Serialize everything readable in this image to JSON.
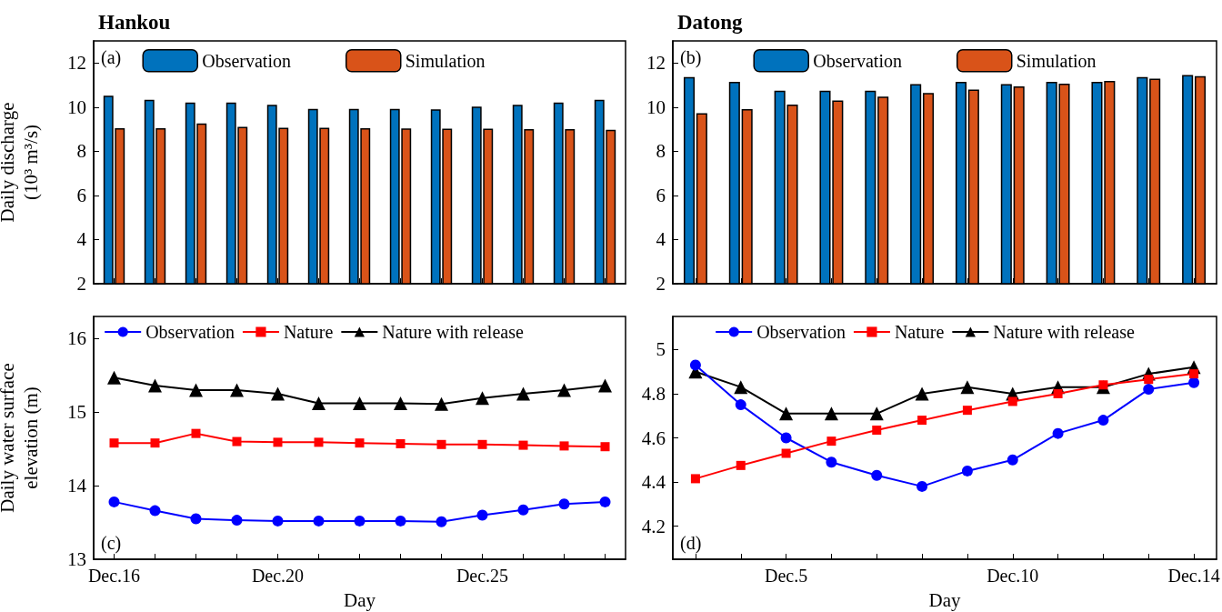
{
  "chart_data": [
    {
      "type": "bar",
      "title": "Hankou",
      "ylabel": "Daily discharge (10³ m³/s)",
      "annotations": [
        "(a)"
      ],
      "categories": [
        null,
        null,
        null,
        null,
        null,
        null,
        null,
        null,
        null,
        null,
        null,
        null,
        null
      ],
      "series": [
        {
          "name": "Observation",
          "color": "#0072bd",
          "values": [
            10.52,
            10.33,
            10.21,
            10.21,
            10.11,
            9.92,
            9.92,
            9.92,
            9.9,
            10.02,
            10.11,
            10.21,
            10.33
          ]
        },
        {
          "name": "Simulation",
          "color": "#d95319",
          "values": [
            9.05,
            9.05,
            9.26,
            9.11,
            9.07,
            9.07,
            9.05,
            9.03,
            9.02,
            9.02,
            9.0,
            9.0,
            8.97
          ]
        }
      ],
      "ylim": [
        2,
        13
      ],
      "yticks": [
        2,
        4,
        6,
        8,
        10,
        12
      ],
      "legend": "top"
    },
    {
      "type": "bar",
      "title": "Datong",
      "annotations": [
        "(b)"
      ],
      "categories": [
        null,
        null,
        null,
        null,
        null,
        null,
        null,
        null,
        null,
        null,
        null,
        null
      ],
      "series": [
        {
          "name": "Observation",
          "color": "#0072bd",
          "values": [
            11.36,
            11.15,
            10.74,
            10.74,
            10.74,
            11.04,
            11.15,
            11.04,
            11.15,
            11.15,
            11.36,
            11.45
          ]
        },
        {
          "name": "Simulation",
          "color": "#d95319",
          "values": [
            9.72,
            9.91,
            10.12,
            10.3,
            10.48,
            10.64,
            10.8,
            10.94,
            11.06,
            11.19,
            11.29,
            11.4
          ]
        }
      ],
      "ylim": [
        2,
        13
      ],
      "yticks": [
        2,
        4,
        6,
        8,
        10,
        12
      ],
      "legend": "top"
    },
    {
      "type": "line",
      "xlabel": "Day",
      "ylabel": "Daily water surface elevation (m)",
      "annotations": [
        "(c)"
      ],
      "categories": [
        "Dec.16",
        null,
        null,
        null,
        "Dec.20",
        null,
        null,
        null,
        null,
        "Dec.25",
        null,
        null,
        null
      ],
      "series": [
        {
          "name": "Observation",
          "color": "#0000ff",
          "marker": "circle",
          "values": [
            13.78,
            13.66,
            13.55,
            13.53,
            13.52,
            13.52,
            13.52,
            13.52,
            13.51,
            13.6,
            13.67,
            13.75,
            13.78
          ]
        },
        {
          "name": "Nature",
          "color": "#ff0000",
          "marker": "square",
          "values": [
            14.58,
            14.58,
            14.71,
            14.6,
            14.59,
            14.59,
            14.58,
            14.57,
            14.56,
            14.56,
            14.55,
            14.54,
            14.53
          ]
        },
        {
          "name": "Nature with release",
          "color": "#000000",
          "marker": "triangle",
          "values": [
            15.47,
            15.36,
            15.3,
            15.3,
            15.25,
            15.12,
            15.12,
            15.12,
            15.11,
            15.19,
            15.25,
            15.3,
            15.36
          ]
        }
      ],
      "ylim": [
        13,
        16.3
      ],
      "yticks": [
        13,
        14,
        15,
        16
      ],
      "legend": "top"
    },
    {
      "type": "line",
      "xlabel": "Day",
      "annotations": [
        "(d)"
      ],
      "categories": [
        null,
        null,
        "Dec.5",
        null,
        null,
        null,
        null,
        "Dec.10",
        null,
        null,
        null,
        "Dec.14"
      ],
      "series": [
        {
          "name": "Observation",
          "color": "#0000ff",
          "marker": "circle",
          "values": [
            4.93,
            4.75,
            4.6,
            4.49,
            4.43,
            4.38,
            4.45,
            4.5,
            4.62,
            4.68,
            4.82,
            4.85
          ]
        },
        {
          "name": "Nature",
          "color": "#ff0000",
          "marker": "square",
          "values": [
            4.415,
            4.475,
            4.53,
            4.585,
            4.635,
            4.68,
            4.725,
            4.765,
            4.8,
            4.84,
            4.865,
            4.89
          ]
        },
        {
          "name": "Nature with release",
          "color": "#000000",
          "marker": "triangle",
          "values": [
            4.9,
            4.83,
            4.71,
            4.71,
            4.71,
            4.8,
            4.83,
            4.8,
            4.83,
            4.83,
            4.89,
            4.92
          ]
        }
      ],
      "ylim": [
        4.05,
        5.15
      ],
      "yticks": [
        4.2,
        4.4,
        4.6,
        4.8,
        5
      ],
      "legend": "top"
    }
  ]
}
